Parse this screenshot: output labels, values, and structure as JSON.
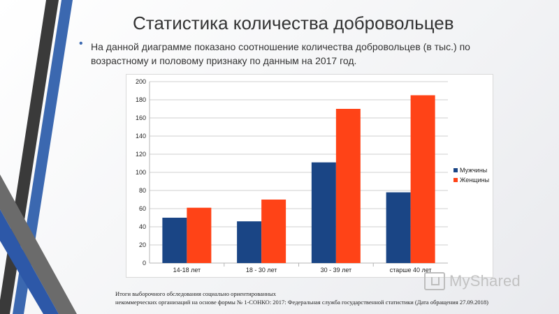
{
  "slide": {
    "title": "Статистика количества добровольцев",
    "subtitle": "На данной диаграмме показано соотношение количества добровольцев (в тыс.) по возрастному и половому признаку по данным на 2017 год.",
    "footnote_line1": "Итоги выборочного обследования социально ориентированных",
    "footnote_line2": "некоммерческих организаций на основе формы № 1-СОНКО: 2017: Федеральная служба государственной статистики (Дата обращения 27.09.2018)",
    "watermark": "MyShared",
    "accent_colors": {
      "dark_blue": "#1f3f78",
      "stripe_blue": "#3b68b0",
      "stripe_dark": "#3a3a3a"
    }
  },
  "chart_data": {
    "type": "bar",
    "categories": [
      "14-18 лет",
      "18 - 30 лет",
      "30 - 39 лет",
      "старше 40 лет"
    ],
    "series": [
      {
        "name": "Мужчины",
        "color": "#1a4585",
        "values": [
          50,
          46,
          111,
          78
        ]
      },
      {
        "name": "Женщины",
        "color": "#ff4317",
        "values": [
          61,
          70,
          170,
          185
        ]
      }
    ],
    "ylim": [
      0,
      200
    ],
    "yticks": [
      0,
      20,
      40,
      60,
      80,
      100,
      120,
      140,
      160,
      180,
      200
    ],
    "grid": true,
    "legend_position": "right"
  }
}
